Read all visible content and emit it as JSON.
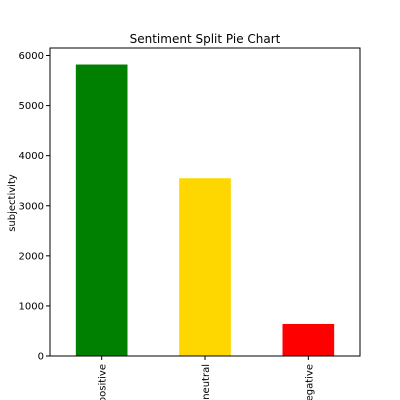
{
  "chart_data": {
    "type": "bar",
    "title": "Sentiment Split Pie Chart",
    "xlabel": "",
    "ylabel": "subjectivity",
    "categories": [
      "positive",
      "neutral",
      "egative"
    ],
    "values": [
      5820,
      3550,
      640
    ],
    "colors": [
      "#008000",
      "#FFD700",
      "#FF0000"
    ],
    "ylim": [
      0,
      6150
    ],
    "yticks": [
      0,
      1000,
      2000,
      3000,
      4000,
      5000,
      6000
    ],
    "grid": false,
    "legend": "none"
  }
}
